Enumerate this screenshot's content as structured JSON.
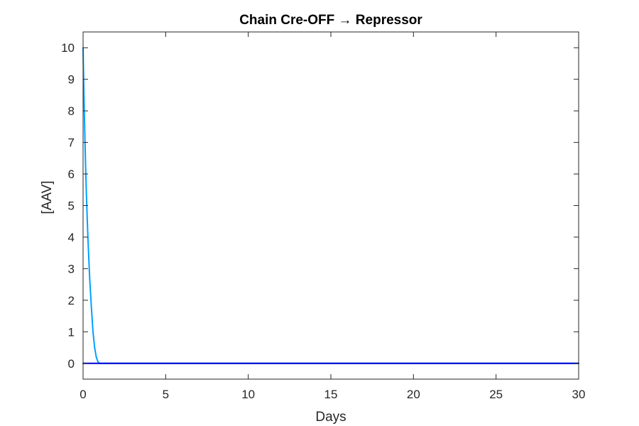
{
  "chart_data": {
    "type": "line",
    "title": "Chain Cre-OFF → Repressor",
    "xlabel": "Days",
    "ylabel": "[AAV]",
    "xlim": [
      0,
      30
    ],
    "ylim": [
      -0.5,
      10.5
    ],
    "x_ticks": [
      0,
      5,
      10,
      15,
      20,
      25,
      30
    ],
    "y_ticks": [
      0,
      1,
      2,
      3,
      4,
      5,
      6,
      7,
      8,
      9,
      10
    ],
    "grid": false,
    "series": [
      {
        "color": "#00a0ff",
        "x": [
          0,
          0.02,
          0.05,
          0.1,
          0.15,
          0.2,
          0.25,
          0.3,
          0.35,
          0.4,
          0.5,
          0.6,
          0.7,
          0.8,
          0.9,
          1,
          2,
          5,
          10,
          15,
          20,
          25,
          30
        ],
        "y": [
          10,
          9.4,
          8.6,
          7.4,
          6.3,
          5.4,
          4.6,
          3.9,
          3.3,
          2.7,
          1.8,
          1.0,
          0.5,
          0.2,
          0.05,
          0,
          0,
          0,
          0,
          0,
          0,
          0,
          0
        ]
      },
      {
        "color": "#0000cd",
        "x": [
          0,
          30
        ],
        "y": [
          0,
          0
        ]
      }
    ]
  }
}
